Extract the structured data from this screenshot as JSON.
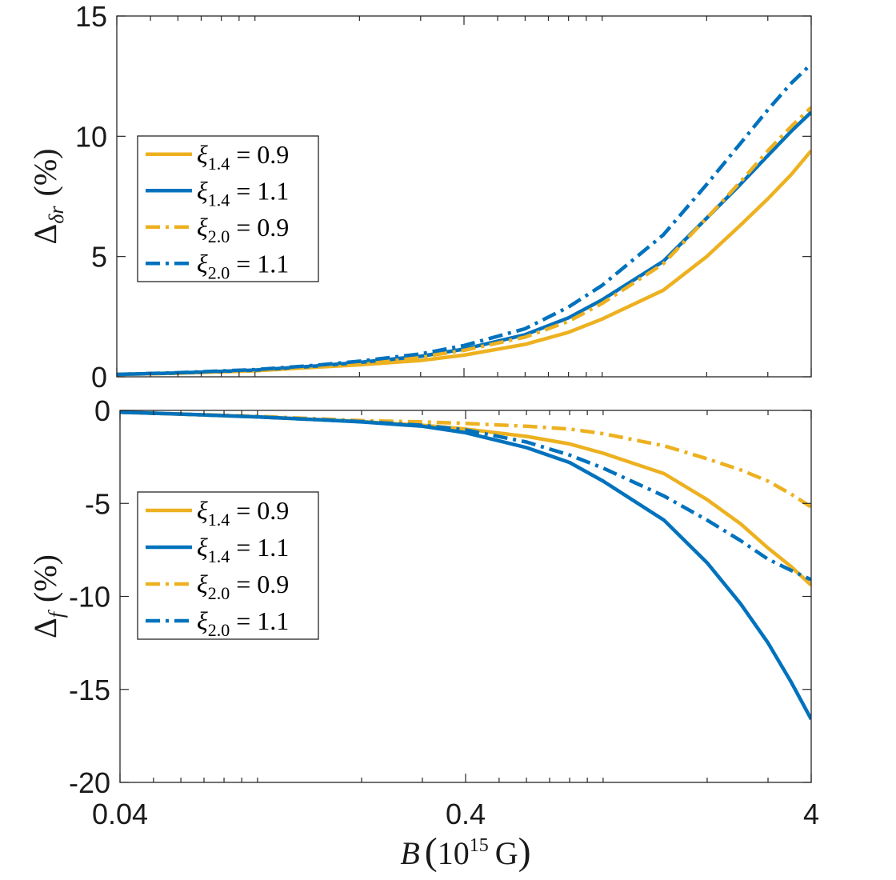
{
  "chart_data": [
    {
      "type": "line",
      "panel": "top",
      "ylabel": "Δ_δr (%)",
      "ylabel_main": "Δ",
      "ylabel_sub": "δr",
      "ylabel_unit": "(%)",
      "xscale": "log",
      "xlim": [
        0.04,
        4
      ],
      "ylim": [
        0,
        15
      ],
      "yticks": [
        0,
        5,
        10,
        15
      ],
      "ytick_labels": [
        "0",
        "5",
        "10",
        "15"
      ],
      "legend_loc": "center-left",
      "x": [
        0.04,
        0.06,
        0.1,
        0.15,
        0.2,
        0.3,
        0.4,
        0.6,
        0.8,
        1.0,
        1.5,
        2.0,
        2.5,
        3.0,
        3.5,
        4.0
      ],
      "series": [
        {
          "name": "ξ_{1.4} = 0.9",
          "label_sym": "ξ",
          "label_sub": "1.4",
          "label_val": "= 0.9",
          "color": "#EDB120",
          "dash": "solid",
          "values": [
            0.1,
            0.15,
            0.25,
            0.4,
            0.5,
            0.68,
            0.9,
            1.35,
            1.85,
            2.4,
            3.6,
            5.0,
            6.3,
            7.4,
            8.4,
            9.4
          ]
        },
        {
          "name": "ξ_{1.4} = 1.1",
          "label_sym": "ξ",
          "label_sub": "1.4",
          "label_val": "= 1.1",
          "color": "#0072BD",
          "dash": "solid",
          "values": [
            0.1,
            0.16,
            0.28,
            0.45,
            0.6,
            0.85,
            1.15,
            1.75,
            2.45,
            3.2,
            4.8,
            6.6,
            8.0,
            9.2,
            10.2,
            11.0
          ]
        },
        {
          "name": "ξ_{2.0} = 0.9",
          "label_sym": "ξ",
          "label_sub": "2.0",
          "label_val": "= 0.9",
          "color": "#EDB120",
          "dash": "dashdot",
          "values": [
            0.1,
            0.15,
            0.27,
            0.43,
            0.58,
            0.82,
            1.1,
            1.65,
            2.3,
            3.05,
            4.7,
            6.6,
            8.1,
            9.4,
            10.4,
            11.2
          ]
        },
        {
          "name": "ξ_{2.0} = 1.1",
          "label_sym": "ξ",
          "label_sub": "2.0",
          "label_val": "= 1.1",
          "color": "#0072BD",
          "dash": "dashdot",
          "values": [
            0.1,
            0.17,
            0.3,
            0.48,
            0.65,
            0.95,
            1.3,
            2.0,
            2.9,
            3.8,
            5.9,
            8.0,
            9.7,
            11.1,
            12.2,
            13.0
          ]
        }
      ]
    },
    {
      "type": "line",
      "panel": "bottom",
      "ylabel": "Δ_f (%)",
      "ylabel_main": "Δ",
      "ylabel_sub": "f",
      "ylabel_unit": "(%)",
      "xlabel": "B (10^15 G)",
      "xlabel_var": "B",
      "xlabel_base": "10",
      "xlabel_exp": "15",
      "xlabel_unit": "G",
      "xscale": "log",
      "xlim": [
        0.04,
        4
      ],
      "xticks": [
        0.04,
        0.4,
        4
      ],
      "xtick_labels": [
        "0.04",
        "0.4",
        "4"
      ],
      "ylim": [
        -20,
        0
      ],
      "yticks": [
        0,
        -5,
        -10,
        -15,
        -20
      ],
      "ytick_labels": [
        "0",
        "-5",
        "-10",
        "-15",
        "-20"
      ],
      "legend_loc": "center-left",
      "x": [
        0.04,
        0.06,
        0.1,
        0.15,
        0.2,
        0.3,
        0.4,
        0.6,
        0.8,
        1.0,
        1.5,
        2.0,
        2.5,
        3.0,
        3.5,
        4.0
      ],
      "series": [
        {
          "name": "ξ_{1.4} = 0.9",
          "label_sym": "ξ",
          "label_sub": "1.4",
          "label_val": "= 0.9",
          "color": "#EDB120",
          "dash": "solid",
          "values": [
            -0.1,
            -0.2,
            -0.35,
            -0.5,
            -0.6,
            -0.8,
            -1.0,
            -1.4,
            -1.8,
            -2.3,
            -3.4,
            -4.8,
            -6.1,
            -7.4,
            -8.4,
            -9.4
          ]
        },
        {
          "name": "ξ_{1.4} = 1.1",
          "label_sym": "ξ",
          "label_sub": "1.4",
          "label_val": "= 1.1",
          "color": "#0072BD",
          "dash": "solid",
          "values": [
            -0.1,
            -0.2,
            -0.35,
            -0.5,
            -0.62,
            -0.85,
            -1.2,
            -2.0,
            -2.8,
            -3.8,
            -5.9,
            -8.2,
            -10.4,
            -12.5,
            -14.6,
            -16.6
          ]
        },
        {
          "name": "ξ_{2.0} = 0.9",
          "label_sym": "ξ",
          "label_sub": "2.0",
          "label_val": "= 0.9",
          "color": "#EDB120",
          "dash": "dashdot",
          "values": [
            -0.1,
            -0.2,
            -0.32,
            -0.45,
            -0.55,
            -0.62,
            -0.7,
            -0.85,
            -1.0,
            -1.25,
            -1.9,
            -2.6,
            -3.2,
            -3.8,
            -4.5,
            -5.2
          ]
        },
        {
          "name": "ξ_{2.0} = 1.1",
          "label_sym": "ξ",
          "label_sub": "2.0",
          "label_val": "= 1.1",
          "color": "#0072BD",
          "dash": "dashdot",
          "values": [
            -0.1,
            -0.2,
            -0.35,
            -0.5,
            -0.6,
            -0.8,
            -1.05,
            -1.7,
            -2.4,
            -3.1,
            -4.6,
            -5.9,
            -7.0,
            -8.0,
            -8.6,
            -9.1
          ]
        }
      ]
    }
  ]
}
